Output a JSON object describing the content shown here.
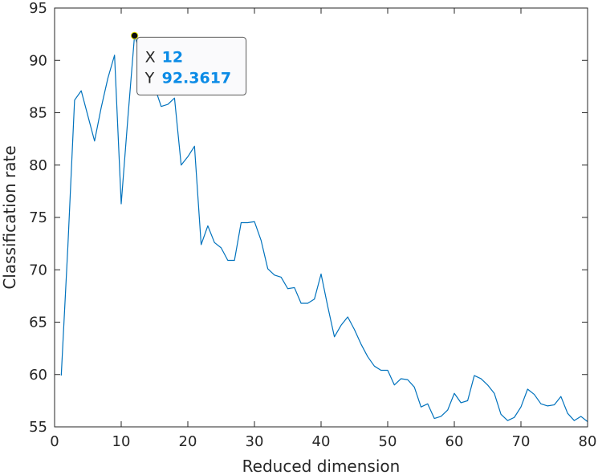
{
  "chart_data": {
    "type": "line",
    "title": "",
    "xlabel": "Reduced dimension",
    "ylabel": "Classification rate",
    "xlim": [
      0,
      80
    ],
    "ylim": [
      55,
      95
    ],
    "xticks": [
      0,
      10,
      20,
      30,
      40,
      50,
      60,
      70,
      80
    ],
    "yticks": [
      55,
      60,
      65,
      70,
      75,
      80,
      85,
      90,
      95
    ],
    "grid": false,
    "line_color": "#0072bd",
    "series": [
      {
        "x": [
          1,
          2,
          3,
          4,
          5,
          6,
          7,
          8,
          9,
          10,
          11,
          12,
          13,
          14,
          15,
          16,
          17,
          18,
          19,
          20,
          21,
          22,
          23,
          24,
          25,
          26,
          27,
          28,
          29,
          30,
          31,
          32,
          33,
          34,
          35,
          36,
          37,
          38,
          39,
          40,
          41,
          42,
          43,
          44,
          45,
          46,
          47,
          48,
          49,
          50,
          51,
          52,
          53,
          54,
          55,
          56,
          57,
          58,
          59,
          60,
          61,
          62,
          63,
          64,
          65,
          66,
          67,
          68,
          69,
          70,
          71,
          72,
          73,
          74,
          75,
          76,
          77,
          78,
          79,
          80
        ],
        "values": [
          59.9,
          72.3,
          86.2,
          87.1,
          84.7,
          82.3,
          85.5,
          88.3,
          90.5,
          76.3,
          84.5,
          92.3617,
          90.5,
          88.7,
          87.5,
          85.6,
          85.8,
          86.4,
          80.0,
          80.8,
          81.8,
          72.4,
          74.2,
          72.6,
          72.1,
          70.9,
          70.9,
          74.5,
          74.5,
          74.6,
          72.8,
          70.1,
          69.5,
          69.3,
          68.2,
          68.3,
          66.8,
          66.8,
          67.2,
          69.6,
          66.5,
          63.6,
          64.7,
          65.5,
          64.3,
          62.9,
          61.7,
          60.8,
          60.4,
          60.4,
          59.0,
          59.6,
          59.5,
          58.8,
          56.9,
          57.2,
          55.8,
          56.0,
          56.6,
          58.2,
          57.3,
          57.5,
          59.9,
          59.6,
          59.0,
          58.2,
          56.2,
          55.6,
          55.9,
          56.9,
          58.6,
          58.1,
          57.2,
          57.0,
          57.1,
          57.9,
          56.3,
          55.6,
          56.0,
          55.5
        ]
      }
    ],
    "datatip": {
      "x_label": "X",
      "x_value": "12",
      "y_label": "Y",
      "y_value": "92.3617",
      "x": 12,
      "y": 92.3617
    }
  }
}
